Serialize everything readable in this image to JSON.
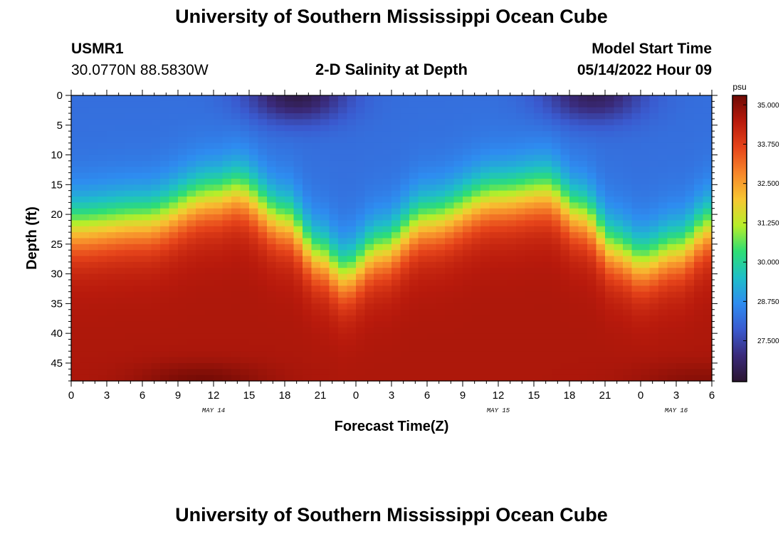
{
  "header": {
    "main_title": "University of Southern Mississippi Ocean Cube",
    "station_id": "USMR1",
    "coords": "30.0770N  88.5830W",
    "subtitle": "2-D Salinity at Depth",
    "model_label": "Model Start Time",
    "model_time": "05/14/2022 Hour 09"
  },
  "footer": {
    "repeat_title": "University of Southern Mississippi Ocean Cube"
  },
  "chart_data": {
    "type": "heatmap",
    "title": "2-D Salinity at Depth",
    "xlabel": "Forecast Time(Z)",
    "ylabel": "Depth (ft)",
    "x_tick_labels": [
      "0",
      "3",
      "6",
      "9",
      "12",
      "15",
      "18",
      "21",
      "0",
      "3",
      "6",
      "9",
      "12",
      "15",
      "18",
      "21",
      "0",
      "3",
      "6"
    ],
    "x_range_hours": [
      0,
      54
    ],
    "date_labels": [
      {
        "text": "MAY 14",
        "hour": 12
      },
      {
        "text": "MAY 15",
        "hour": 36
      },
      {
        "text": "MAY 16",
        "hour": 51
      }
    ],
    "y_ticks": [
      0,
      5,
      10,
      15,
      20,
      25,
      30,
      35,
      40,
      45
    ],
    "ylim": [
      0,
      48
    ],
    "y_inverted": true,
    "colorbar": {
      "unit": "psu",
      "ticks": [
        "35.000",
        "33.750",
        "32.500",
        "31.250",
        "30.000",
        "28.750",
        "27.500"
      ],
      "vmin": 26.2,
      "vmax": 35.3,
      "colors": [
        "#2b1530",
        "#3a2a7a",
        "#3a5acf",
        "#2e8cf0",
        "#1ebfc8",
        "#2ede74",
        "#b6ee2a",
        "#f7c732",
        "#f7872a",
        "#e6441a",
        "#b81a0c",
        "#6e0a05"
      ]
    },
    "field_description": {
      "surface_salinity_psu": 28.2,
      "bottom_salinity_psu": 34.6,
      "halocline_depth_ft_by_hour": [
        [
          0,
          22
        ],
        [
          6,
          21
        ],
        [
          12,
          17
        ],
        [
          14,
          16
        ],
        [
          18,
          21
        ],
        [
          21,
          27
        ],
        [
          23,
          30
        ],
        [
          26,
          26
        ],
        [
          30,
          21
        ],
        [
          36,
          17
        ],
        [
          40,
          16
        ],
        [
          43,
          20
        ],
        [
          46,
          26
        ],
        [
          48,
          28
        ],
        [
          51,
          26
        ],
        [
          54,
          22
        ]
      ],
      "surface_fresh_patches": [
        {
          "hour": 19,
          "min_psu": 26.5
        },
        {
          "hour": 44,
          "min_psu": 26.7
        }
      ],
      "bottom_salty_patches": [
        {
          "hour": 11,
          "max_psu": 35.2
        },
        {
          "hour": 53,
          "max_psu": 35.0
        }
      ]
    }
  }
}
